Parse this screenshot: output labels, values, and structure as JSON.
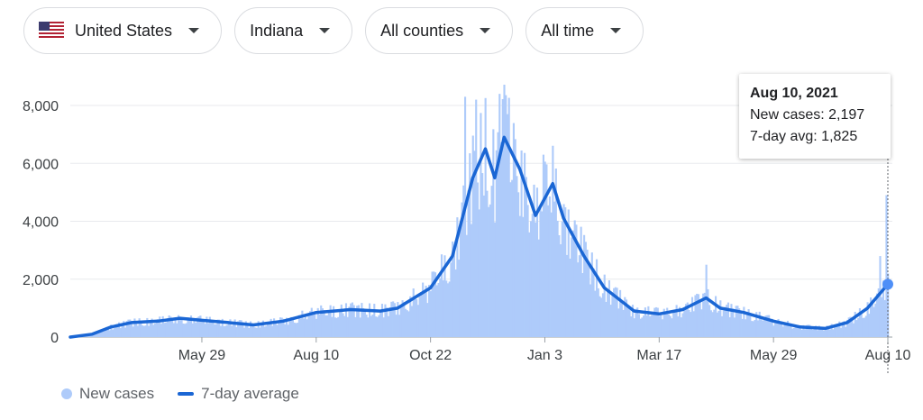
{
  "filters": [
    {
      "label": "United States",
      "icon": "us-flag-icon"
    },
    {
      "label": "Indiana"
    },
    {
      "label": "All counties"
    },
    {
      "label": "All time"
    }
  ],
  "tooltip": {
    "date": "Aug 10, 2021",
    "new_cases_label": "New cases:",
    "new_cases_value": "2,197",
    "avg_label": "7-day avg:",
    "avg_value": "1,825"
  },
  "legend": {
    "new_cases": "New cases",
    "avg": "7-day average"
  },
  "colors": {
    "bars": "#aecbfa",
    "avg_line": "#1a66d4",
    "grid": "#e8eaed"
  },
  "chart_data": {
    "type": "bar",
    "title": "",
    "ylim": [
      0,
      8000
    ],
    "y_ticks": [
      0,
      2000,
      4000,
      6000,
      8000
    ],
    "y_tick_labels": [
      "0",
      "2,000",
      "4,000",
      "6,000",
      "8,000"
    ],
    "x_start": "2020-03-06",
    "x_end": "2021-08-10",
    "x_ticks": [
      {
        "date": "2020-05-29",
        "label": "May 29"
      },
      {
        "date": "2020-08-10",
        "label": "Aug 10"
      },
      {
        "date": "2020-10-22",
        "label": "Oct 22"
      },
      {
        "date": "2021-01-03",
        "label": "Jan 3"
      },
      {
        "date": "2021-03-17",
        "label": "Mar 17"
      },
      {
        "date": "2021-05-29",
        "label": "May 29"
      },
      {
        "date": "2021-08-10",
        "label": "Aug 10"
      }
    ],
    "grid": true,
    "legend_position": "bottom-left",
    "series": [
      {
        "name": "7-day average",
        "type": "line",
        "points": [
          {
            "date": "2020-03-06",
            "value": 0
          },
          {
            "date": "2020-03-20",
            "value": 100
          },
          {
            "date": "2020-04-01",
            "value": 350
          },
          {
            "date": "2020-04-14",
            "value": 500
          },
          {
            "date": "2020-05-01",
            "value": 550
          },
          {
            "date": "2020-05-15",
            "value": 650
          },
          {
            "date": "2020-05-29",
            "value": 580
          },
          {
            "date": "2020-06-15",
            "value": 500
          },
          {
            "date": "2020-07-01",
            "value": 420
          },
          {
            "date": "2020-07-20",
            "value": 550
          },
          {
            "date": "2020-08-10",
            "value": 850
          },
          {
            "date": "2020-09-01",
            "value": 950
          },
          {
            "date": "2020-09-20",
            "value": 900
          },
          {
            "date": "2020-10-01",
            "value": 1000
          },
          {
            "date": "2020-10-22",
            "value": 1700
          },
          {
            "date": "2020-11-05",
            "value": 2800
          },
          {
            "date": "2020-11-18",
            "value": 5500
          },
          {
            "date": "2020-11-26",
            "value": 6500
          },
          {
            "date": "2020-12-02",
            "value": 5500
          },
          {
            "date": "2020-12-08",
            "value": 6900
          },
          {
            "date": "2020-12-18",
            "value": 5800
          },
          {
            "date": "2020-12-28",
            "value": 4200
          },
          {
            "date": "2021-01-03",
            "value": 4800
          },
          {
            "date": "2021-01-08",
            "value": 5300
          },
          {
            "date": "2021-01-15",
            "value": 4100
          },
          {
            "date": "2021-01-28",
            "value": 2800
          },
          {
            "date": "2021-02-10",
            "value": 1700
          },
          {
            "date": "2021-03-01",
            "value": 900
          },
          {
            "date": "2021-03-17",
            "value": 800
          },
          {
            "date": "2021-04-01",
            "value": 950
          },
          {
            "date": "2021-04-16",
            "value": 1350
          },
          {
            "date": "2021-04-25",
            "value": 1000
          },
          {
            "date": "2021-05-10",
            "value": 850
          },
          {
            "date": "2021-05-29",
            "value": 550
          },
          {
            "date": "2021-06-15",
            "value": 350
          },
          {
            "date": "2021-07-01",
            "value": 300
          },
          {
            "date": "2021-07-15",
            "value": 500
          },
          {
            "date": "2021-07-28",
            "value": 1000
          },
          {
            "date": "2021-08-10",
            "value": 1825
          }
        ]
      },
      {
        "name": "New cases",
        "type": "bar",
        "spikes": [
          {
            "date": "2020-11-13",
            "value": 8300
          },
          {
            "date": "2020-11-20",
            "value": 8200
          },
          {
            "date": "2020-12-05",
            "value": 8400
          },
          {
            "date": "2020-12-10",
            "value": 7700
          },
          {
            "date": "2021-01-02",
            "value": 6300
          },
          {
            "date": "2021-04-16",
            "value": 2500
          },
          {
            "date": "2021-08-05",
            "value": 2800
          },
          {
            "date": "2021-08-09",
            "value": 4900
          },
          {
            "date": "2021-08-10",
            "value": 2197
          }
        ]
      }
    ],
    "selected_point": {
      "date": "2021-08-10",
      "value": 1825
    }
  }
}
